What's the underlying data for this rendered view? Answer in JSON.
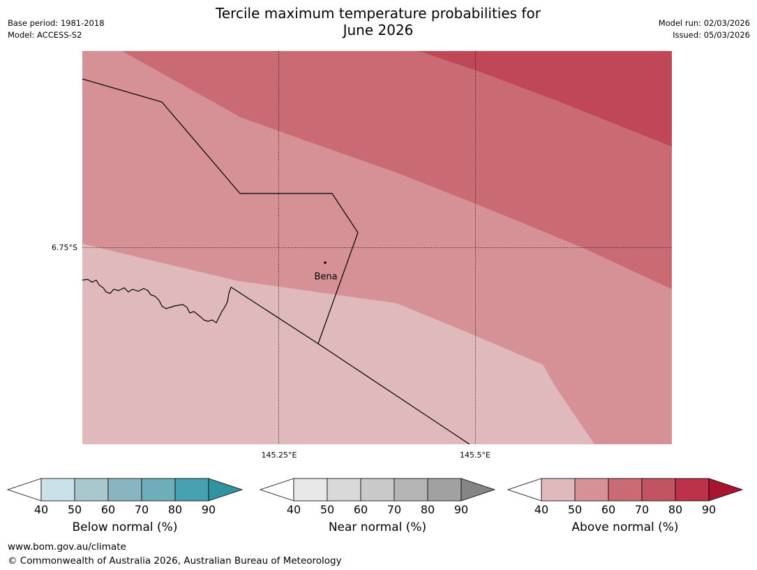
{
  "header": {
    "base_period": "Base period: 1981-2018",
    "model": "Model: ACCESS-S2",
    "title_line1": "Tercile maximum temperature probabilities for",
    "title_line2": "June 2026",
    "model_run": "Model run: 02/03/2026",
    "issued": "Issued: 05/03/2026"
  },
  "map": {
    "lat_label": "6.75°S",
    "lon_labels": [
      "145.25°E",
      "145.5°E"
    ],
    "place": "Bena",
    "zone_colors": {
      "above_40_50": "#e0b9bd",
      "above_50_60": "#d59196",
      "above_60_70": "#ca6b74",
      "above_70_80": "#c04856"
    }
  },
  "legends": [
    {
      "label": "Below normal (%)",
      "ticks": [
        "40",
        "50",
        "60",
        "70",
        "80",
        "90"
      ],
      "colors": [
        "#c9e2e8",
        "#a7c7cc",
        "#89b5c1",
        "#6eadba",
        "#47a0ad",
        "#31939f"
      ]
    },
    {
      "label": "Near normal (%)",
      "ticks": [
        "40",
        "50",
        "60",
        "70",
        "80",
        "90"
      ],
      "colors": [
        "#e8e8e8",
        "#d9d9d9",
        "#c9c9c9",
        "#b5b5b5",
        "#a1a1a1",
        "#858585"
      ]
    },
    {
      "label": "Above normal (%)",
      "ticks": [
        "40",
        "50",
        "60",
        "70",
        "80",
        "90"
      ],
      "colors": [
        "#e0b9bd",
        "#d59196",
        "#ca6b74",
        "#c25361",
        "#bc3349",
        "#a8152f"
      ]
    }
  ],
  "footer": {
    "url": "www.bom.gov.au/climate",
    "copyright": "© Commonwealth of Australia 2026, Australian Bureau of Meteorology"
  }
}
